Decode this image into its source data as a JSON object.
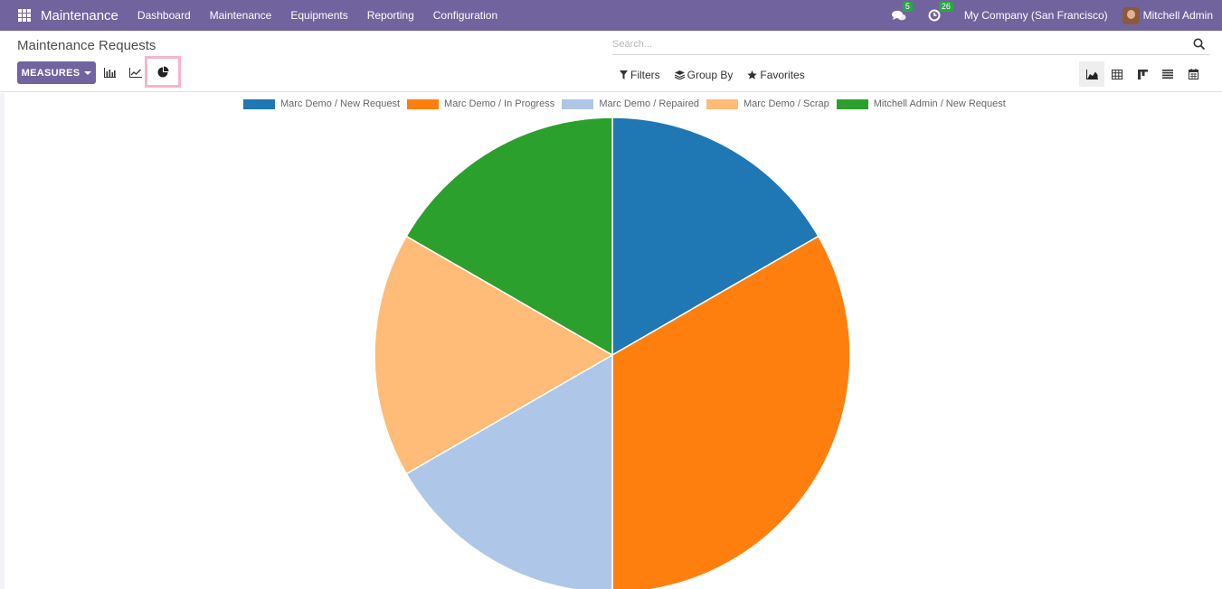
{
  "topbar": {
    "app_title": "Maintenance",
    "nav": [
      "Dashboard",
      "Maintenance",
      "Equipments",
      "Reporting",
      "Configuration"
    ],
    "messages_count": "5",
    "activities_count": "26",
    "company": "My Company (San Francisco)",
    "user": "Mitchell Admin"
  },
  "control": {
    "title": "Maintenance Requests",
    "search_placeholder": "Search...",
    "measures_label": "MEASURES",
    "filters_label": "Filters",
    "groupby_label": "Group By",
    "favorites_label": "Favorites"
  },
  "colors": {
    "brand": "#71639e",
    "highlight": "#f5b5cf"
  },
  "chart_data": {
    "type": "pie",
    "title": "",
    "legend_position": "top",
    "categories": [
      "Marc Demo / New Request",
      "Marc Demo / In Progress",
      "Marc Demo / Repaired",
      "Marc Demo / Scrap",
      "Mitchell Admin / New Request"
    ],
    "values": [
      1,
      2,
      1,
      1,
      1
    ],
    "colors": [
      "#1f77b4",
      "#ff7f0e",
      "#aec7e8",
      "#ffbb78",
      "#2ca02c"
    ]
  }
}
